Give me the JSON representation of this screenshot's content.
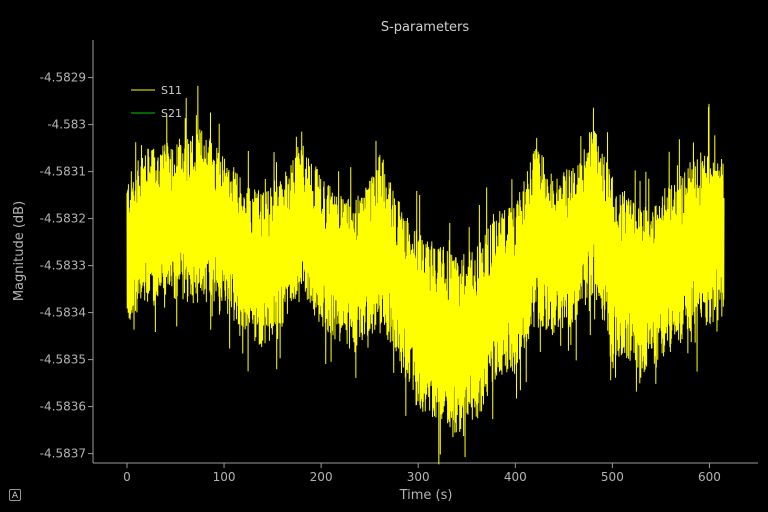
{
  "chart_data": {
    "type": "line",
    "title": "S-parameters",
    "xlabel": "Time (s)",
    "ylabel": "Magnitude (dB)",
    "xlim": [
      -35,
      650
    ],
    "ylim": [
      -4.58372,
      -4.58282
    ],
    "xticks": [
      0,
      100,
      200,
      300,
      400,
      500,
      600
    ],
    "yticks": [
      -4.5829,
      -4.583,
      -4.5831,
      -4.5832,
      -4.5833,
      -4.5834,
      -4.5835,
      -4.5836,
      -4.5837
    ],
    "ytick_labels": [
      "-4.5829",
      "-4.583",
      "-4.5831",
      "-4.5832",
      "-4.5833",
      "-4.5834",
      "-4.5835",
      "-4.5836",
      "-4.5837"
    ],
    "grid": false,
    "legend_position": "top-left",
    "series": [
      {
        "name": "S11",
        "color": "#ffff00",
        "x": [
          0,
          20,
          40,
          60,
          80,
          100,
          120,
          140,
          160,
          180,
          200,
          220,
          240,
          260,
          280,
          300,
          320,
          340,
          360,
          380,
          400,
          420,
          440,
          460,
          480,
          500,
          520,
          540,
          560,
          580,
          600,
          615
        ],
        "center": [
          -4.58327,
          -4.58322,
          -4.58321,
          -4.5832,
          -4.58319,
          -4.58323,
          -4.58328,
          -4.58331,
          -4.58327,
          -4.5832,
          -4.58327,
          -4.58331,
          -4.58332,
          -4.58324,
          -4.58334,
          -4.58342,
          -4.58344,
          -4.58347,
          -4.58345,
          -4.58336,
          -4.58335,
          -4.58324,
          -4.58327,
          -4.58326,
          -4.58318,
          -4.5833,
          -4.58334,
          -4.58335,
          -4.58331,
          -4.58326,
          -4.58324,
          -4.58324
        ],
        "band": [
          0.00016,
          0.00017,
          0.00017,
          0.00018,
          0.00019,
          0.00017,
          0.00016,
          0.00017,
          0.00016,
          0.00017,
          0.00016,
          0.00016,
          0.00017,
          0.00018,
          0.00018,
          0.00019,
          0.00019,
          0.00019,
          0.00019,
          0.00018,
          0.00018,
          0.00019,
          0.00018,
          0.00017,
          0.00018,
          0.00019,
          0.00018,
          0.00018,
          0.00018,
          0.00018,
          0.00019,
          0.00017
        ]
      },
      {
        "name": "S21",
        "color": "#00c800",
        "x": [],
        "center": [],
        "band": []
      }
    ]
  },
  "controls": {
    "auto_range_label": "A"
  }
}
